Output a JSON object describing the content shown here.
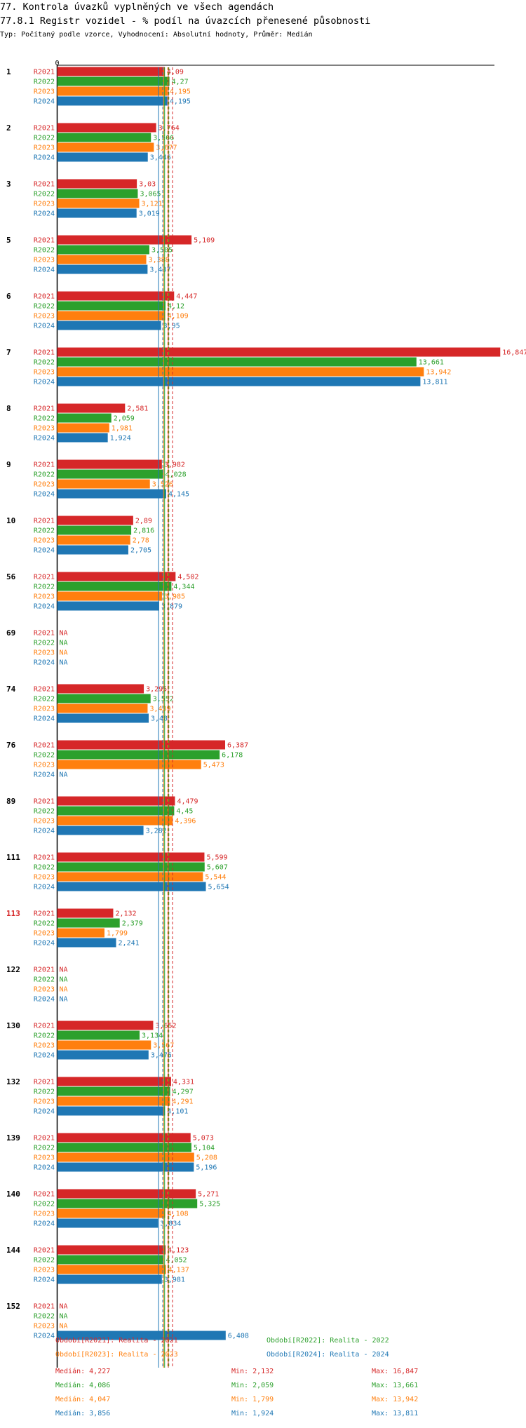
{
  "page": {
    "title": "77. Kontrola úvazků vyplněných ve všech agendách",
    "subtitle": "77.8.1 Registr vozidel - % podíl na úvazcích přenesené působnosti",
    "type_line": "Typ: Počítaný podle vzorce, Vyhodnocení: Absolutní hodnoty, Průměr: Medián"
  },
  "colors": {
    "R2021": "#d62728",
    "R2022": "#2ca02c",
    "R2023": "#ff7f0e",
    "R2024": "#1f77b4",
    "highlight_group": "#d62728"
  },
  "chart_data": {
    "type": "bar",
    "orientation": "horizontal",
    "x_tick_labels": [
      "0"
    ],
    "xlim": [
      0,
      17.5
    ],
    "series": [
      {
        "name": "R2021",
        "legend": "Období[R2021]: Realita - 2021"
      },
      {
        "name": "R2022",
        "legend": "Období[R2022]: Realita - 2022"
      },
      {
        "name": "R2023",
        "legend": "Období[R2023]: Realita - 2023"
      },
      {
        "name": "R2024",
        "legend": "Období[R2024]: Realita - 2024"
      }
    ],
    "groups": [
      {
        "label": "1",
        "highlight": false,
        "values": [
          4.09,
          4.27,
          4.195,
          4.195
        ],
        "labels": [
          "4,09",
          "4,27",
          "4,195",
          "4,195"
        ]
      },
      {
        "label": "2",
        "highlight": false,
        "values": [
          3.764,
          3.566,
          3.677,
          3.446
        ],
        "labels": [
          "3,764",
          "3,566",
          "3,677",
          "3,446"
        ]
      },
      {
        "label": "3",
        "highlight": false,
        "values": [
          3.03,
          3.065,
          3.121,
          3.019
        ],
        "labels": [
          "3,03",
          "3,065",
          "3,121",
          "3,019"
        ]
      },
      {
        "label": "5",
        "highlight": false,
        "values": [
          5.109,
          3.505,
          3.388,
          3.437
        ],
        "labels": [
          "5,109",
          "3,505",
          "3,388",
          "3,437"
        ]
      },
      {
        "label": "6",
        "highlight": false,
        "values": [
          4.447,
          4.12,
          4.109,
          3.95
        ],
        "labels": [
          "4,447",
          "4,12",
          "4,109",
          "3,95"
        ]
      },
      {
        "label": "7",
        "highlight": false,
        "values": [
          16.847,
          13.661,
          13.942,
          13.811
        ],
        "labels": [
          "16,847",
          "13,661",
          "13,942",
          "13,811"
        ]
      },
      {
        "label": "8",
        "highlight": false,
        "values": [
          2.581,
          2.059,
          1.981,
          1.924
        ],
        "labels": [
          "2,581",
          "2,059",
          "1,981",
          "1,924"
        ]
      },
      {
        "label": "9",
        "highlight": false,
        "values": [
          3.982,
          4.028,
          3.526,
          4.145
        ],
        "labels": [
          "3,982",
          "4,028",
          "3,526",
          "4,145"
        ]
      },
      {
        "label": "10",
        "highlight": false,
        "values": [
          2.89,
          2.816,
          2.78,
          2.705
        ],
        "labels": [
          "2,89",
          "2,816",
          "2,78",
          "2,705"
        ]
      },
      {
        "label": "56",
        "highlight": false,
        "values": [
          4.502,
          4.344,
          3.985,
          3.879
        ],
        "labels": [
          "4,502",
          "4,344",
          "3,985",
          "3,879"
        ]
      },
      {
        "label": "69",
        "highlight": false,
        "values": [
          null,
          null,
          null,
          null
        ],
        "labels": [
          "NA",
          "NA",
          "NA",
          "NA"
        ]
      },
      {
        "label": "74",
        "highlight": false,
        "values": [
          3.295,
          3.552,
          3.439,
          3.48
        ],
        "labels": [
          "3,295",
          "3,552",
          "3,439",
          "3,48"
        ]
      },
      {
        "label": "76",
        "highlight": false,
        "values": [
          6.387,
          6.178,
          5.473,
          null
        ],
        "labels": [
          "6,387",
          "6,178",
          "5,473",
          "NA"
        ]
      },
      {
        "label": "89",
        "highlight": false,
        "values": [
          4.479,
          4.45,
          4.396,
          3.282
        ],
        "labels": [
          "4,479",
          "4,45",
          "4,396",
          "3,282"
        ]
      },
      {
        "label": "111",
        "highlight": false,
        "values": [
          5.599,
          5.607,
          5.544,
          5.654
        ],
        "labels": [
          "5,599",
          "5,607",
          "5,544",
          "5,654"
        ]
      },
      {
        "label": "113",
        "highlight": true,
        "values": [
          2.132,
          2.379,
          1.799,
          2.241
        ],
        "labels": [
          "2,132",
          "2,379",
          "1,799",
          "2,241"
        ]
      },
      {
        "label": "122",
        "highlight": false,
        "values": [
          null,
          null,
          null,
          null
        ],
        "labels": [
          "NA",
          "NA",
          "NA",
          "NA"
        ]
      },
      {
        "label": "130",
        "highlight": false,
        "values": [
          3.652,
          3.134,
          3.567,
          3.475
        ],
        "labels": [
          "3,652",
          "3,134",
          "3,567",
          "3,475"
        ]
      },
      {
        "label": "132",
        "highlight": false,
        "values": [
          4.331,
          4.297,
          4.291,
          4.101
        ],
        "labels": [
          "4,331",
          "4,297",
          "4,291",
          "4,101"
        ]
      },
      {
        "label": "139",
        "highlight": false,
        "values": [
          5.073,
          5.104,
          5.208,
          5.196
        ],
        "labels": [
          "5,073",
          "5,104",
          "5,208",
          "5,196"
        ]
      },
      {
        "label": "140",
        "highlight": false,
        "values": [
          5.271,
          5.325,
          4.108,
          3.834
        ],
        "labels": [
          "5,271",
          "5,325",
          "4,108",
          "3,834"
        ]
      },
      {
        "label": "144",
        "highlight": false,
        "values": [
          4.123,
          4.052,
          4.137,
          3.981
        ],
        "labels": [
          "4,123",
          "4,052",
          "4,137",
          "3,981"
        ]
      },
      {
        "label": "152",
        "highlight": false,
        "values": [
          null,
          null,
          null,
          6.408
        ],
        "labels": [
          "NA",
          "NA",
          "NA",
          "6,408"
        ]
      }
    ],
    "reference_lines": {
      "type": "median",
      "values": [
        4.227,
        4.086,
        4.047,
        3.856
      ],
      "style": "solid and dashed vertical lines per series"
    },
    "stats": [
      {
        "series": "R2021",
        "median": "Medián: 4,227",
        "min": "Min: 2,132",
        "max": "Max: 16,847"
      },
      {
        "series": "R2022",
        "median": "Medián: 4,086",
        "min": "Min: 2,059",
        "max": "Max: 13,661"
      },
      {
        "series": "R2023",
        "median": "Medián: 4,047",
        "min": "Min: 1,799",
        "max": "Max: 13,942"
      },
      {
        "series": "R2024",
        "median": "Medián: 3,856",
        "min": "Min: 1,924",
        "max": "Max: 13,811"
      }
    ]
  }
}
